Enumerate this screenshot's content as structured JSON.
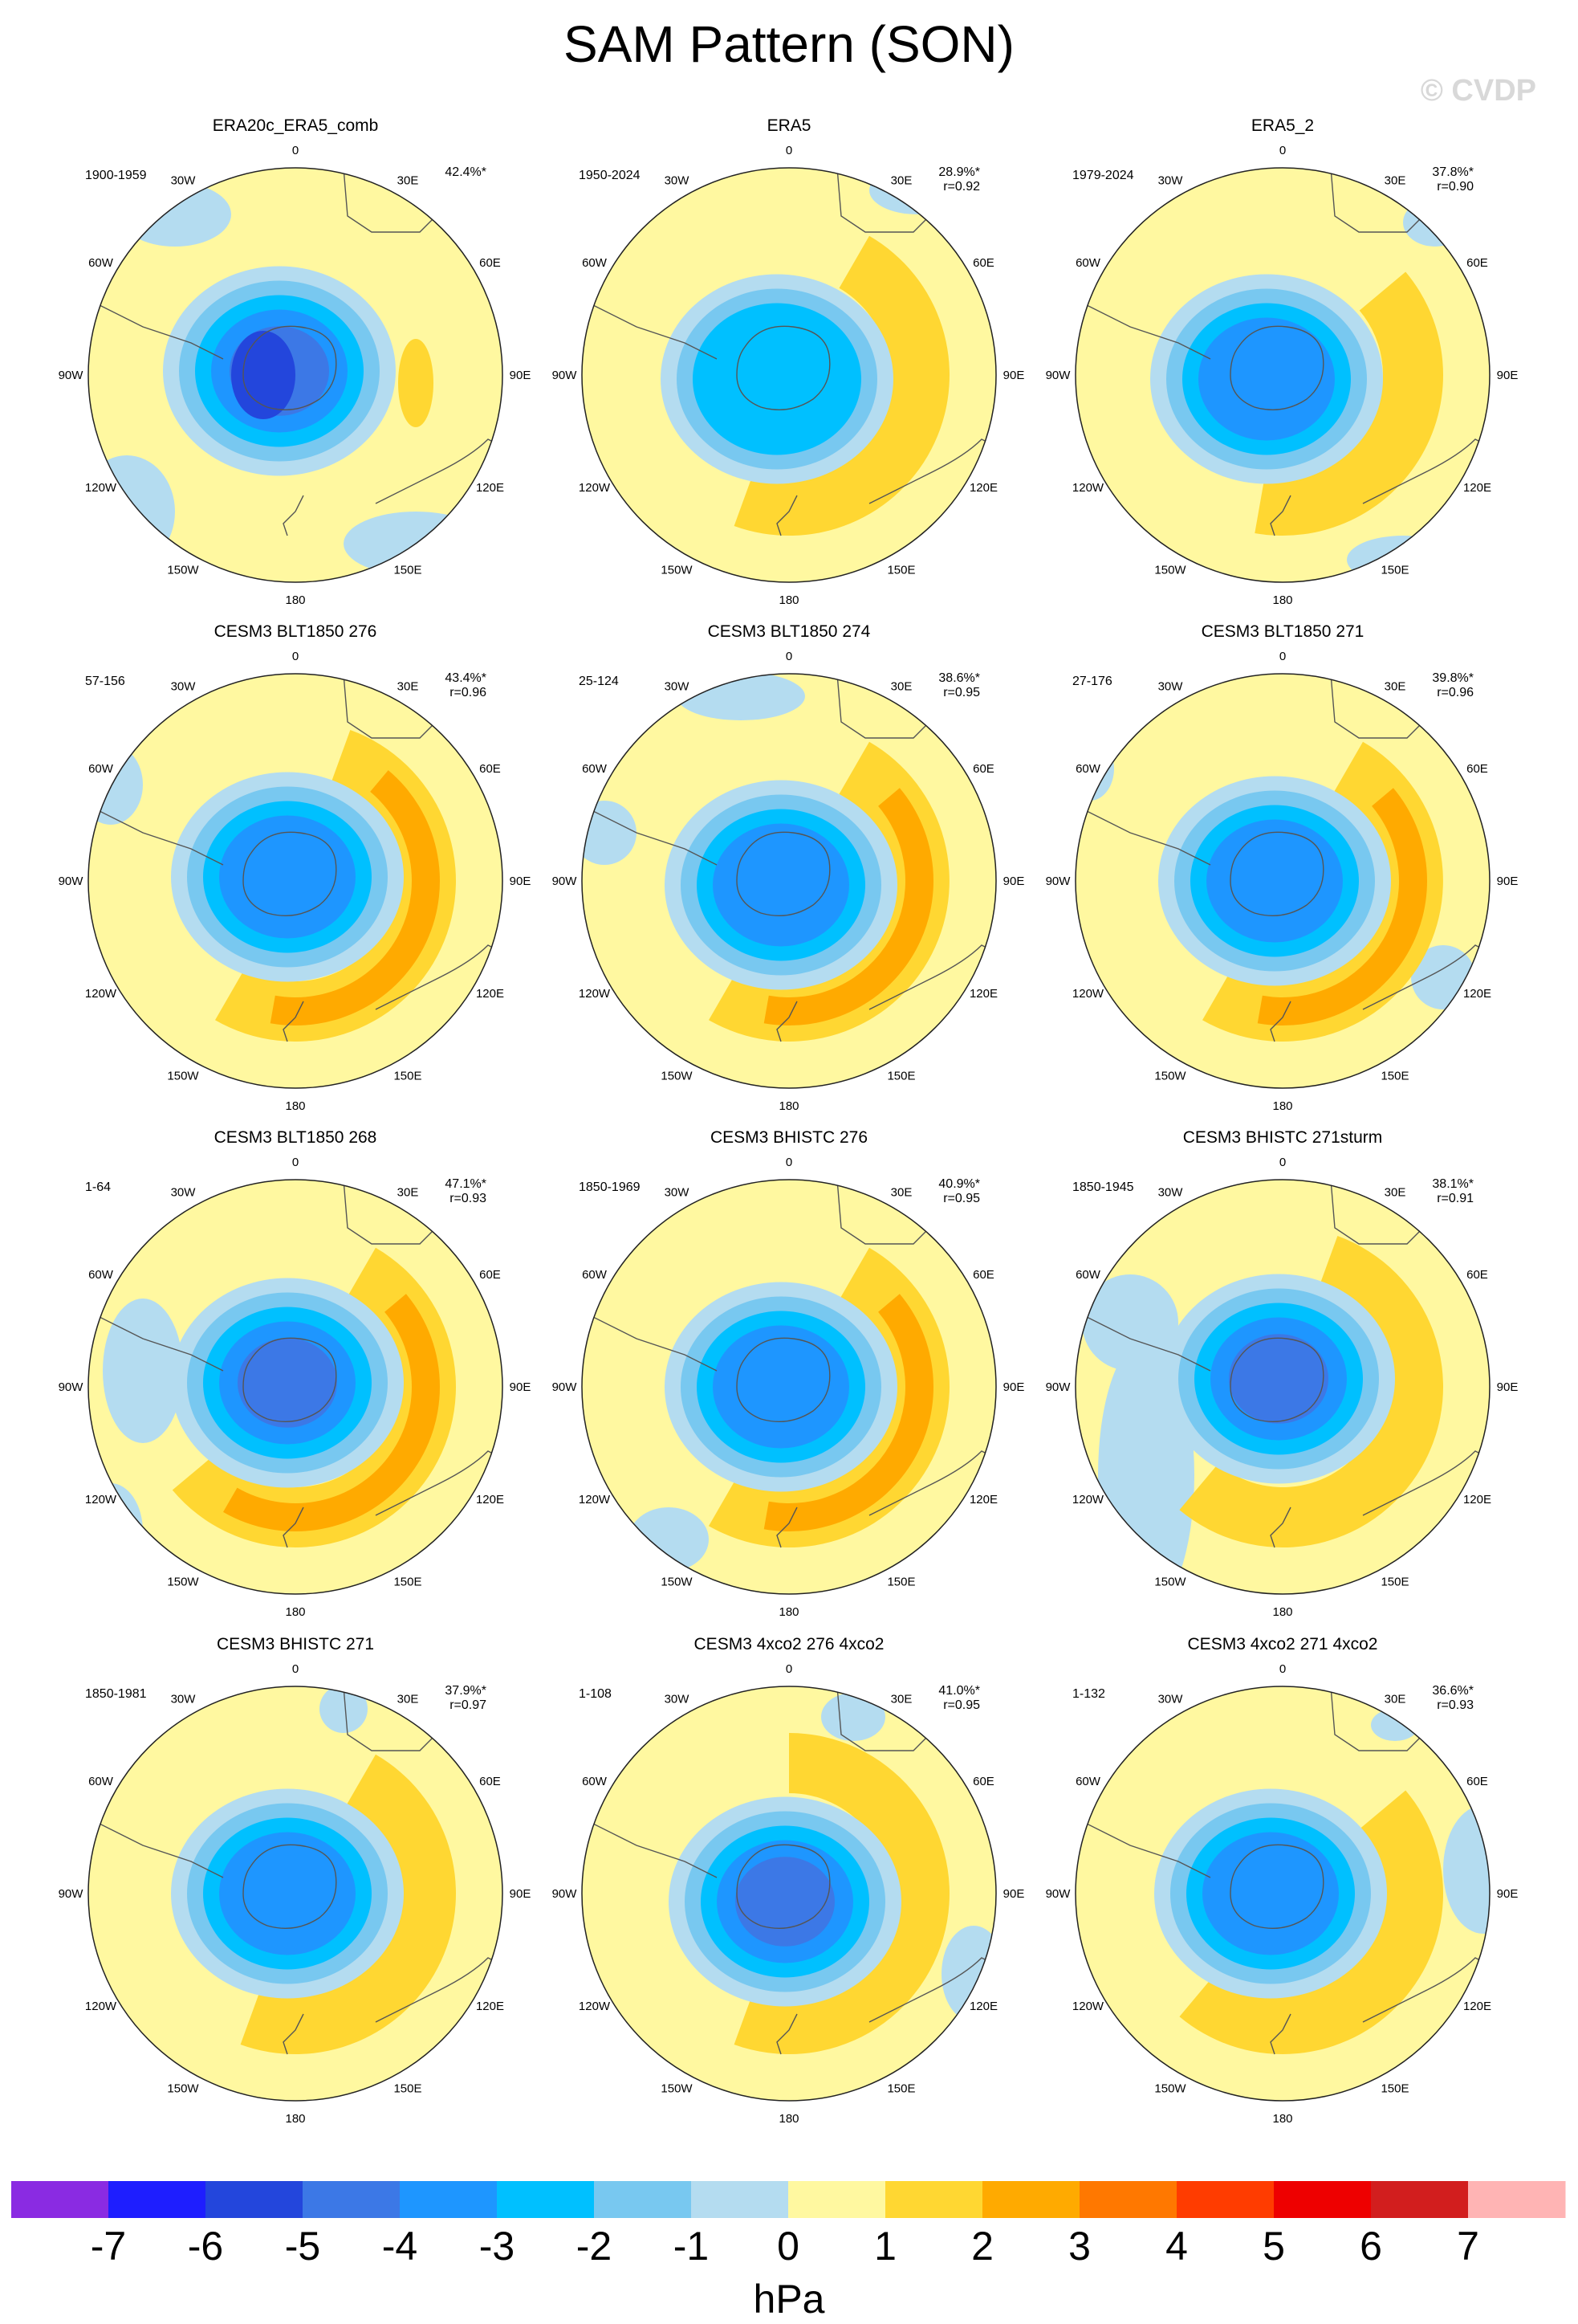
{
  "title": "SAM Pattern (SON)",
  "watermark": "© CVDP",
  "units": "hPa",
  "lon_labels": [
    "0",
    "30E",
    "60E",
    "90E",
    "120E",
    "150E",
    "180",
    "150W",
    "120W",
    "90W",
    "60W",
    "30W"
  ],
  "colorbar": {
    "labels": [
      "-7",
      "-6",
      "-5",
      "-4",
      "-3",
      "-2",
      "-1",
      "0",
      "1",
      "2",
      "3",
      "4",
      "5",
      "6",
      "7"
    ],
    "colors": [
      "#8a2be2",
      "#1e1eff",
      "#2346dc",
      "#3c78e6",
      "#1e96ff",
      "#00c0ff",
      "#78c8f0",
      "#b4dcf0",
      "#fff8a0",
      "#ffd732",
      "#ffaa00",
      "#ff7800",
      "#ff3c00",
      "#ee0000",
      "#d21e1e",
      "#ffb4b4"
    ]
  },
  "panels": [
    {
      "title": "ERA20c_ERA5_comb",
      "years": "1900-1959",
      "pct": "42.4%*",
      "r": ""
    },
    {
      "title": "ERA5",
      "years": "1950-2024",
      "pct": "28.9%*",
      "r": "r=0.92"
    },
    {
      "title": "ERA5_2",
      "years": "1979-2024",
      "pct": "37.8%*",
      "r": "r=0.90"
    },
    {
      "title": "CESM3 BLT1850 276",
      "years": "57-156",
      "pct": "43.4%*",
      "r": "r=0.96"
    },
    {
      "title": "CESM3 BLT1850 274",
      "years": "25-124",
      "pct": "38.6%*",
      "r": "r=0.95"
    },
    {
      "title": "CESM3 BLT1850 271",
      "years": "27-176",
      "pct": "39.8%*",
      "r": "r=0.96"
    },
    {
      "title": "CESM3 BLT1850 268",
      "years": "1-64",
      "pct": "47.1%*",
      "r": "r=0.93"
    },
    {
      "title": "CESM3 BHISTC 276",
      "years": "1850-1969",
      "pct": "40.9%*",
      "r": "r=0.95"
    },
    {
      "title": "CESM3 BHISTC 271sturm",
      "years": "1850-1945",
      "pct": "38.1%*",
      "r": "r=0.91"
    },
    {
      "title": "CESM3 BHISTC 271",
      "years": "1850-1981",
      "pct": "37.9%*",
      "r": "r=0.97"
    },
    {
      "title": "CESM3 4xco2 276 4xco2",
      "years": "1-108",
      "pct": "41.0%*",
      "r": "r=0.95"
    },
    {
      "title": "CESM3 4xco2 271 4xco2",
      "years": "1-132",
      "pct": "36.6%*",
      "r": "r=0.93"
    }
  ]
}
